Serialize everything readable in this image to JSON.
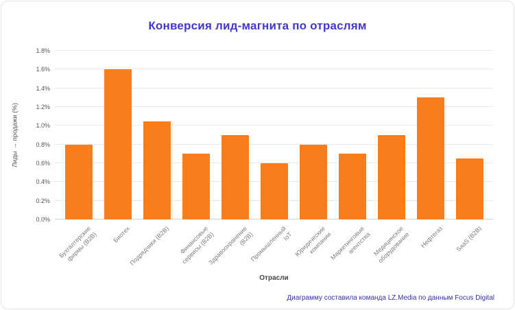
{
  "chart_data": {
    "type": "bar",
    "title": "Конверсия лид-магнита по отраслям",
    "xlabel": "Отрасли",
    "ylabel": "Лиды → продажи (%)",
    "ylim": [
      0,
      1.8
    ],
    "grid": true,
    "legend": false,
    "categories": [
      "Бухгалтерские фирмы (B2B)",
      "Биотех",
      "Подрядчики (B2B)",
      "Финансовые сервисы (B2B)",
      "Здравоохранение (B2B)",
      "Промышленный IoT",
      "Юридические компании",
      "Маркетинговые агентства",
      "Медицинское оборудование",
      "Нефтегаз",
      "SaaS (B2B)"
    ],
    "values": [
      0.8,
      1.6,
      1.05,
      0.7,
      0.9,
      0.6,
      0.8,
      0.7,
      0.9,
      1.3,
      0.65
    ],
    "y_ticks": [
      {
        "label": "0.0%",
        "value": 0.0
      },
      {
        "label": "0.2%",
        "value": 0.2
      },
      {
        "label": "0.4%",
        "value": 0.4
      },
      {
        "label": "0.6%",
        "value": 0.6
      },
      {
        "label": "0.8%",
        "value": 0.8
      },
      {
        "label": "1.0%",
        "value": 1.0
      },
      {
        "label": "1.2%",
        "value": 1.2
      },
      {
        "label": "1.4%",
        "value": 1.4
      },
      {
        "label": "1.6%",
        "value": 1.6
      },
      {
        "label": "1.8%",
        "value": 1.8
      }
    ]
  },
  "colors": {
    "bar": "#F97E1B",
    "title": "#4338CA",
    "footer": "#3730A3",
    "gridline": "#E8E8E8",
    "axis_text": "#7D7D7D"
  },
  "footer": {
    "text": "Диаграмму составила команда LZ.Media по данным Focus Digital"
  }
}
